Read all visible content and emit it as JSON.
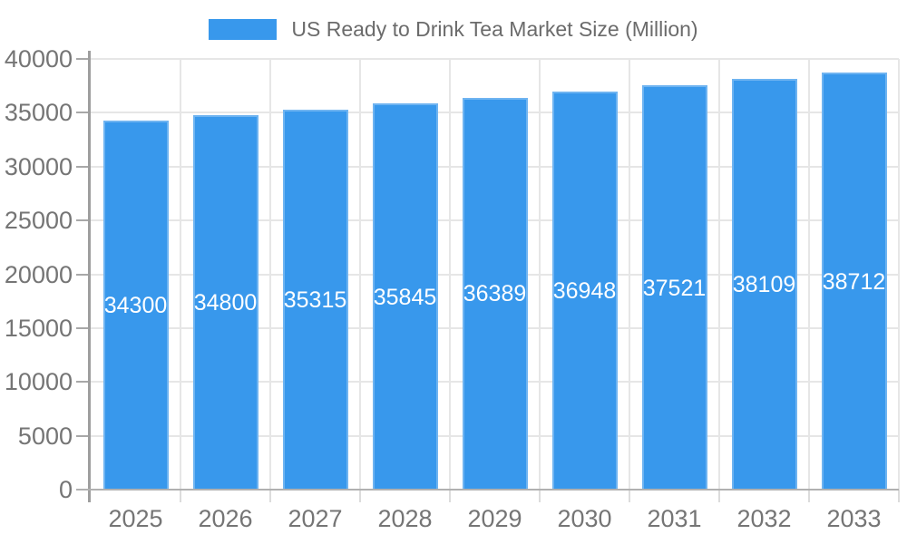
{
  "legend": {
    "label": "US Ready to Drink Tea Market Size (Million)"
  },
  "colors": {
    "bar": "#3898ec",
    "grid": "#e6e6e6",
    "y_axis": "#9e9e9e",
    "x_axis": "#b0b0b0",
    "y_tick": "#a8a8a8",
    "x_tick": "#dcdcdc",
    "axis_text": "#757575",
    "legend_text": "#6b6b6b",
    "bar_label_text": "#ffffff",
    "background": "#ffffff"
  },
  "chart_data": {
    "type": "bar",
    "title": "US Ready to Drink Tea Market Size (Million)",
    "categories": [
      "2025",
      "2026",
      "2027",
      "2028",
      "2029",
      "2030",
      "2031",
      "2032",
      "2033"
    ],
    "series": [
      {
        "name": "US Ready to Drink Tea Market Size (Million)",
        "color": "#3898ec",
        "values": [
          34300,
          34800,
          35315,
          35845,
          36389,
          36948,
          37521,
          38109,
          38712
        ]
      }
    ],
    "value_labels": [
      "34300",
      "34800",
      "35315",
      "35845",
      "36389",
      "36948",
      "37521",
      "38109",
      "38712"
    ],
    "value_label_position": "inside-center",
    "xlabel": "",
    "ylabel": "",
    "ylim": [
      0,
      40000
    ],
    "yticks": [
      0,
      5000,
      10000,
      15000,
      20000,
      25000,
      30000,
      35000,
      40000
    ],
    "ytick_labels": [
      "0",
      "5000",
      "10000",
      "15000",
      "20000",
      "25000",
      "30000",
      "35000",
      "40000"
    ],
    "grid": true,
    "legend_position": "top"
  }
}
